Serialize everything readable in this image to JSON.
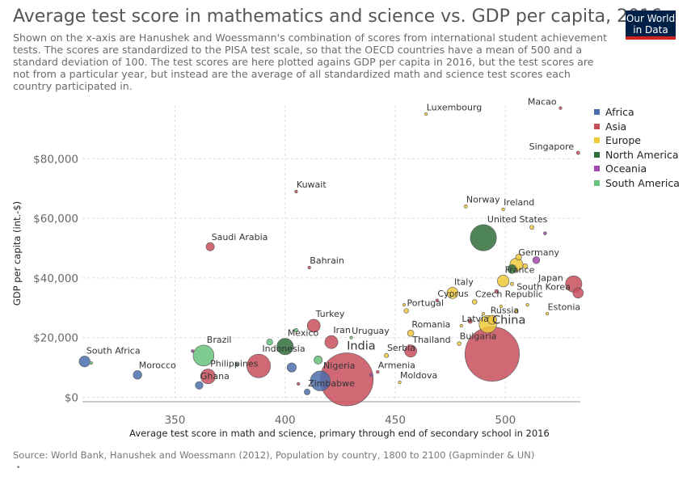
{
  "header": {
    "title": "Average test score in mathematics and science vs. GDP per capita, 2016",
    "subtitle": "Shown on the x-axis are Hanushek and Woessmann's combination of scores from international student achievement tests. The scores are standardized to the PISA test scale, so that the OECD countries have a mean of 500 and a standard deviation of 100. The test scores are here plotted agains GDP per capita in 2016, but the test scores are not from a particular year, but instead are the average of all standardized math and science test scores each country participated in.",
    "logo_line1": "Our World",
    "logo_line2": "in Data"
  },
  "footer": {
    "source": "Source: World Bank, Hanushek and Woessmann (2012), Population by country, 1800 to 2100 (Gapminder & UN)",
    "dot": "•"
  },
  "colors": {
    "Africa": "#4c6ead",
    "Asia": "#c94f5c",
    "Europe": "#f0c93c",
    "North America": "#2f6e3b",
    "Oceania": "#a249ad",
    "South America": "#66c27a"
  },
  "legend": [
    "Africa",
    "Asia",
    "Europe",
    "North America",
    "Oceania",
    "South America"
  ],
  "chart_data": {
    "type": "scatter",
    "title": "Average test score in mathematics and science vs. GDP per capita, 2016",
    "xlabel": "Average test score in math and science, primary through end of secondary school in 2016",
    "ylabel": "GDP per capita (int.-$)",
    "xlim": [
      308,
      534
    ],
    "ylim": [
      -1500,
      98000
    ],
    "x_ticks": [
      350,
      400,
      450,
      500
    ],
    "y_ticks": [
      0,
      20000,
      40000,
      60000,
      80000
    ],
    "y_tick_labels": [
      "$0",
      "$20,000",
      "$40,000",
      "$60,000",
      "$80,000"
    ],
    "grid": true,
    "legend_position": "right",
    "size_encoding": "population",
    "points": [
      {
        "label": "Luxembourg",
        "region": "Europe",
        "x": 464,
        "y": 95000,
        "pop": 0.6
      },
      {
        "label": "Macao",
        "region": "Asia",
        "x": 525,
        "y": 97000,
        "pop": 0.6
      },
      {
        "label": "Singapore",
        "region": "Asia",
        "x": 533,
        "y": 82000,
        "pop": 5.6
      },
      {
        "label": "Kuwait",
        "region": "Asia",
        "x": 405,
        "y": 69000,
        "pop": 4
      },
      {
        "label": "Norway",
        "region": "Europe",
        "x": 482,
        "y": 64000,
        "pop": 5.2
      },
      {
        "label": "Ireland",
        "region": "Europe",
        "x": 499,
        "y": 63000,
        "pop": 4.7
      },
      {
        "label": "United States",
        "region": "North America",
        "x": 490,
        "y": 53500,
        "pop": 323
      },
      {
        "label": "",
        "region": "Europe",
        "x": 512,
        "y": 57000,
        "pop": 8.4
      },
      {
        "label": "",
        "region": "Oceania",
        "x": 518,
        "y": 55000,
        "pop": 4.7
      },
      {
        "label": "Saudi Arabia",
        "region": "Asia",
        "x": 366,
        "y": 50500,
        "pop": 32
      },
      {
        "label": "Bahrain",
        "region": "Asia",
        "x": 411,
        "y": 43500,
        "pop": 1.4
      },
      {
        "label": "Germany",
        "region": "Europe",
        "x": 505,
        "y": 44500,
        "pop": 82
      },
      {
        "label": "",
        "region": "North America",
        "x": 503,
        "y": 43000,
        "pop": 36
      },
      {
        "label": "",
        "region": "Europe",
        "x": 509,
        "y": 44000,
        "pop": 11
      },
      {
        "label": "",
        "region": "Oceania",
        "x": 514,
        "y": 46000,
        "pop": 24
      },
      {
        "label": "",
        "region": "Europe",
        "x": 506,
        "y": 47000,
        "pop": 17
      },
      {
        "label": "France",
        "region": "Europe",
        "x": 499,
        "y": 39000,
        "pop": 65
      },
      {
        "label": "",
        "region": "Europe",
        "x": 503,
        "y": 38000,
        "pop": 5.5
      },
      {
        "label": "Japan",
        "region": "Asia",
        "x": 531,
        "y": 38000,
        "pop": 127
      },
      {
        "label": "South Korea",
        "region": "Asia",
        "x": 533,
        "y": 35000,
        "pop": 51
      },
      {
        "label": "",
        "region": "Asia",
        "x": 496,
        "y": 35500,
        "pop": 7
      },
      {
        "label": "Italy",
        "region": "Europe",
        "x": 476,
        "y": 35000,
        "pop": 60
      },
      {
        "label": "Cyprus",
        "region": "Asia",
        "x": 469,
        "y": 32500,
        "pop": 1.2
      },
      {
        "label": "Czech Republic",
        "region": "Europe",
        "x": 486,
        "y": 32000,
        "pop": 10.6
      },
      {
        "label": "",
        "region": "Europe",
        "x": 498,
        "y": 30500,
        "pop": 4.2
      },
      {
        "label": "",
        "region": "Europe",
        "x": 505,
        "y": 29000,
        "pop": 5.4
      },
      {
        "label": "",
        "region": "Europe",
        "x": 510,
        "y": 31000,
        "pop": 1.3
      },
      {
        "label": "Estonia",
        "region": "Europe",
        "x": 519,
        "y": 28000,
        "pop": 1.3
      },
      {
        "label": "Portugal",
        "region": "Europe",
        "x": 455,
        "y": 29000,
        "pop": 10.3
      },
      {
        "label": "",
        "region": "Europe",
        "x": 454,
        "y": 31000,
        "pop": 0.4
      },
      {
        "label": "Russia",
        "region": "Europe",
        "x": 492,
        "y": 24500,
        "pop": 144
      },
      {
        "label": "Latvia",
        "region": "Europe",
        "x": 480,
        "y": 24000,
        "pop": 2
      },
      {
        "label": "",
        "region": "Asia",
        "x": 484,
        "y": 25500,
        "pop": 9
      },
      {
        "label": "",
        "region": "Europe",
        "x": 494,
        "y": 26000,
        "pop": 38
      },
      {
        "label": "",
        "region": "Europe",
        "x": 490,
        "y": 28000,
        "pop": 4
      },
      {
        "label": "Romania",
        "region": "Europe",
        "x": 457,
        "y": 21500,
        "pop": 19.8
      },
      {
        "label": "Bulgaria",
        "region": "Europe",
        "x": 479,
        "y": 18000,
        "pop": 7.1
      },
      {
        "label": "Thailand",
        "region": "Asia",
        "x": 457,
        "y": 15500,
        "pop": 69
      },
      {
        "label": "Serbia",
        "region": "Europe",
        "x": 446,
        "y": 14000,
        "pop": 8.8
      },
      {
        "label": "China",
        "region": "Asia",
        "x": 494,
        "y": 14500,
        "pop": 1400
      },
      {
        "label": "Turkey",
        "region": "Asia",
        "x": 413,
        "y": 24000,
        "pop": 79
      },
      {
        "label": "Iran",
        "region": "Asia",
        "x": 421,
        "y": 18500,
        "pop": 80
      },
      {
        "label": "Uruguay",
        "region": "South America",
        "x": 430,
        "y": 20000,
        "pop": 3.4
      },
      {
        "label": "",
        "region": "South America",
        "x": 405,
        "y": 22500,
        "pop": 6
      },
      {
        "label": "Mexico",
        "region": "North America",
        "x": 400,
        "y": 17000,
        "pop": 128
      },
      {
        "label": "",
        "region": "South America",
        "x": 393,
        "y": 18500,
        "pop": 18
      },
      {
        "label": "Indonesia",
        "region": "Asia",
        "x": 388,
        "y": 10500,
        "pop": 261
      },
      {
        "label": "",
        "region": "Africa",
        "x": 403,
        "y": 10000,
        "pop": 40
      },
      {
        "label": "",
        "region": "South America",
        "x": 415,
        "y": 12500,
        "pop": 32
      },
      {
        "label": "Brazil",
        "region": "South America",
        "x": 363,
        "y": 14000,
        "pop": 207
      },
      {
        "label": "",
        "region": "Oceania",
        "x": 358,
        "y": 15500,
        "pop": 0.9
      },
      {
        "label": "Philippines",
        "region": "Asia",
        "x": 365,
        "y": 7000,
        "pop": 103
      },
      {
        "label": "",
        "region": "North America",
        "x": 378,
        "y": 11000,
        "pop": 0.4
      },
      {
        "label": "India",
        "region": "Asia",
        "x": 428,
        "y": 6000,
        "pop": 1324
      },
      {
        "label": "Armenia",
        "region": "Asia",
        "x": 442,
        "y": 8500,
        "pop": 2.9
      },
      {
        "label": "",
        "region": "Oceania",
        "x": 439,
        "y": 7500,
        "pop": 0.1
      },
      {
        "label": "Nigeria",
        "region": "Africa",
        "x": 416,
        "y": 5500,
        "pop": 186
      },
      {
        "label": "",
        "region": "Asia",
        "x": 406,
        "y": 4500,
        "pop": 0.5
      },
      {
        "label": "Moldova",
        "region": "Europe",
        "x": 452,
        "y": 5000,
        "pop": 4
      },
      {
        "label": "Zimbabwe",
        "region": "Africa",
        "x": 410,
        "y": 1800,
        "pop": 16
      },
      {
        "label": "Morocco",
        "region": "Africa",
        "x": 333,
        "y": 7500,
        "pop": 35
      },
      {
        "label": "Ghana",
        "region": "Africa",
        "x": 361,
        "y": 4000,
        "pop": 28
      },
      {
        "label": "South Africa",
        "region": "Africa",
        "x": 309,
        "y": 12000,
        "pop": 56
      },
      {
        "label": "",
        "region": "South America",
        "x": 312,
        "y": 11500,
        "pop": 3
      }
    ]
  }
}
